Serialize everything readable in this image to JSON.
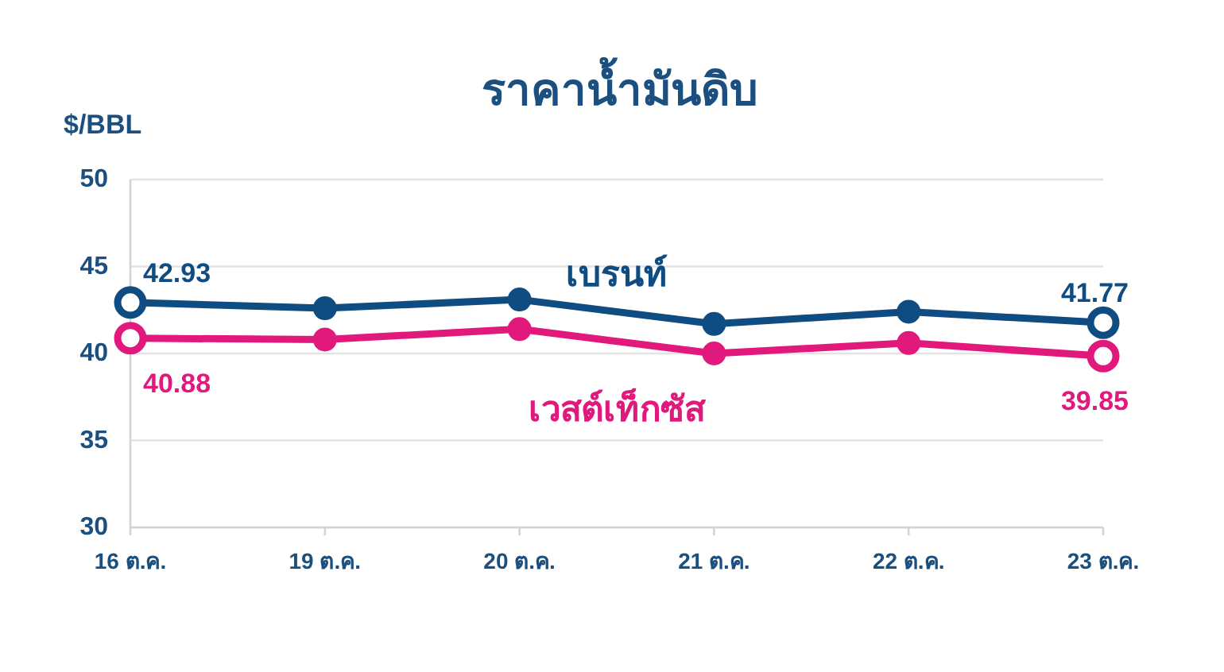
{
  "chart_data": {
    "type": "line",
    "title": "ราคาน้ำมันดิบ",
    "ylabel": "$/BBL",
    "categories": [
      "16 ต.ค.",
      "19 ต.ค.",
      "20 ต.ค.",
      "21 ต.ค.",
      "22 ต.ค.",
      "23 ต.ค."
    ],
    "series": [
      {
        "name": "เบรนท์",
        "color": "#0f4c81",
        "values": [
          42.93,
          42.6,
          43.1,
          41.7,
          42.4,
          41.77
        ],
        "value_labels": [
          "42.93",
          null,
          null,
          null,
          null,
          "41.77"
        ]
      },
      {
        "name": "เวสต์เท็กซัส",
        "color": "#e2197c",
        "values": [
          40.88,
          40.8,
          41.4,
          40.0,
          40.6,
          39.85
        ],
        "value_labels": [
          "40.88",
          null,
          null,
          null,
          null,
          "39.85"
        ]
      }
    ],
    "ylim": [
      30,
      50
    ],
    "yticks": [
      30,
      35,
      40,
      45,
      50
    ],
    "grid": "y",
    "marker": "circle"
  }
}
